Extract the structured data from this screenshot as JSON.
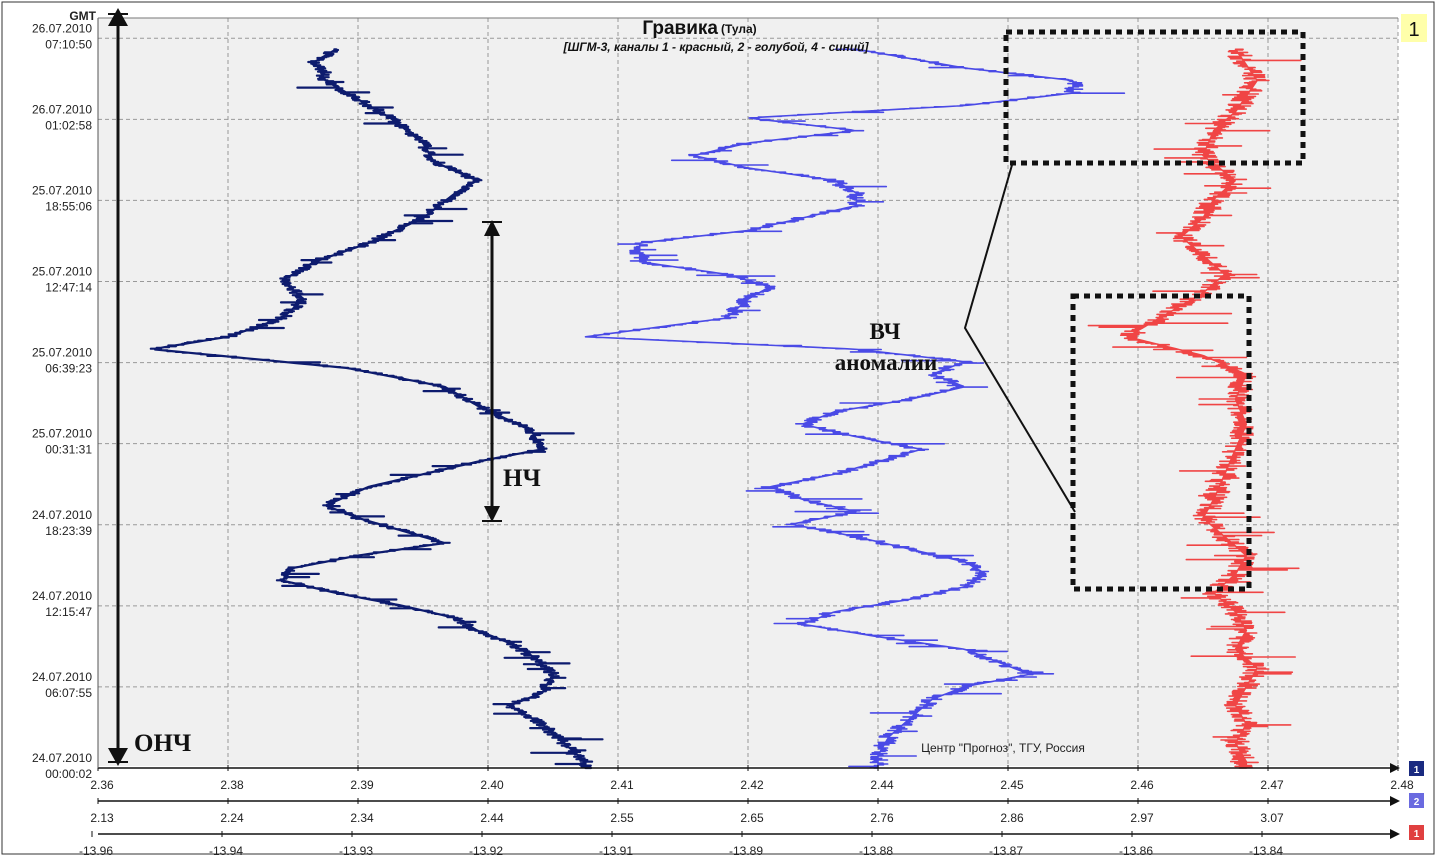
{
  "chart_data": {
    "type": "line",
    "title": "Гравика",
    "title_location": "(Тула)",
    "subtitle": "[ШГМ-3, каналы 1 - красный, 2 - голубой, 4 - синий]",
    "panel_number": "1",
    "credit": "Центр \"Прогноз\", ТГУ, Россия",
    "y_axis_label": "GMT",
    "y_ticks": [
      {
        "date": "26.07.2010",
        "time": "07:10:50"
      },
      {
        "date": "26.07.2010",
        "time": "01:02:58"
      },
      {
        "date": "25.07.2010",
        "time": "18:55:06"
      },
      {
        "date": "25.07.2010",
        "time": "12:47:14"
      },
      {
        "date": "25.07.2010",
        "time": "06:39:23"
      },
      {
        "date": "25.07.2010",
        "time": "00:31:31"
      },
      {
        "date": "24.07.2010",
        "time": "18:23:39"
      },
      {
        "date": "24.07.2010",
        "time": "12:15:47"
      },
      {
        "date": "24.07.2010",
        "time": "06:07:55"
      },
      {
        "date": "24.07.2010",
        "time": "00:00:02"
      }
    ],
    "time_range_hours": [
      0,
      60
    ],
    "x_axes": [
      {
        "channel": "4",
        "ticks": [
          "2.36",
          "2.38",
          "2.39",
          "2.40",
          "2.41",
          "2.42",
          "2.44",
          "2.45",
          "2.46",
          "2.47",
          "2.48"
        ]
      },
      {
        "channel": "2",
        "ticks": [
          "2.13",
          "2.24",
          "2.34",
          "2.44",
          "2.55",
          "2.65",
          "2.76",
          "2.86",
          "2.97",
          "3.07"
        ]
      },
      {
        "channel": "1",
        "ticks": [
          "-13.96",
          "-13.94",
          "-13.93",
          "-13.92",
          "-13.91",
          "-13.89",
          "-13.88",
          "-13.87",
          "-13.86",
          "-13.84"
        ]
      }
    ],
    "legend_badges": [
      "1",
      "2",
      "1"
    ],
    "grid": true,
    "series": [
      {
        "channel": "4",
        "color": "#0d1b6e",
        "noise": 5,
        "points": [
          [
            57.5,
            2.382
          ],
          [
            56.5,
            2.38
          ],
          [
            55,
            2.381
          ],
          [
            53.5,
            2.384
          ],
          [
            52,
            2.387
          ],
          [
            50,
            2.39
          ],
          [
            48.5,
            2.391
          ],
          [
            47,
            2.395
          ],
          [
            46,
            2.393
          ],
          [
            44,
            2.39
          ],
          [
            42,
            2.385
          ],
          [
            40.5,
            2.38
          ],
          [
            39,
            2.377
          ],
          [
            37.5,
            2.379
          ],
          [
            36,
            2.377
          ],
          [
            34.5,
            2.372
          ],
          [
            33.5,
            2.365
          ],
          [
            32,
            2.383
          ],
          [
            30.5,
            2.392
          ],
          [
            29,
            2.395
          ],
          [
            27,
            2.4
          ],
          [
            25.5,
            2.401
          ],
          [
            24.5,
            2.395
          ],
          [
            23.5,
            2.39
          ],
          [
            22.5,
            2.385
          ],
          [
            21,
            2.381
          ],
          [
            20,
            2.384
          ],
          [
            19,
            2.388
          ],
          [
            18,
            2.392
          ],
          [
            17,
            2.384
          ],
          [
            16,
            2.378
          ],
          [
            15,
            2.377
          ],
          [
            14,
            2.382
          ],
          [
            13,
            2.388
          ],
          [
            12,
            2.393
          ],
          [
            11,
            2.395
          ],
          [
            10,
            2.398
          ],
          [
            9,
            2.4
          ],
          [
            7.5,
            2.402
          ],
          [
            6,
            2.401
          ],
          [
            5,
            2.398
          ],
          [
            3.5,
            2.401
          ],
          [
            2,
            2.403
          ],
          [
            0.5,
            2.405
          ],
          [
            0,
            2.405
          ]
        ]
      },
      {
        "channel": "2",
        "color": "#4a4ae6",
        "noise": 7,
        "points": [
          [
            57.5,
            2.43
          ],
          [
            56,
            2.44
          ],
          [
            55,
            2.45
          ],
          [
            54,
            2.45
          ],
          [
            53,
            2.44
          ],
          [
            52,
            2.42
          ],
          [
            51,
            2.43
          ],
          [
            50,
            2.42
          ],
          [
            49,
            2.415
          ],
          [
            48,
            2.42
          ],
          [
            47,
            2.428
          ],
          [
            46,
            2.43
          ],
          [
            45,
            2.43
          ],
          [
            44,
            2.425
          ],
          [
            43,
            2.42
          ],
          [
            42,
            2.41
          ],
          [
            40.5,
            2.41
          ],
          [
            39.5,
            2.418
          ],
          [
            38.5,
            2.422
          ],
          [
            37.5,
            2.42
          ],
          [
            36,
            2.418
          ],
          [
            34.5,
            2.405
          ],
          [
            33.5,
            2.43
          ],
          [
            32.5,
            2.44
          ],
          [
            31.5,
            2.437
          ],
          [
            30.5,
            2.44
          ],
          [
            29.5,
            2.435
          ],
          [
            28.5,
            2.428
          ],
          [
            27.5,
            2.425
          ],
          [
            26.5,
            2.43
          ],
          [
            25.5,
            2.436
          ],
          [
            24.5,
            2.432
          ],
          [
            23.5,
            2.428
          ],
          [
            22.5,
            2.422
          ],
          [
            21.5,
            2.425
          ],
          [
            20.5,
            2.43
          ],
          [
            19.5,
            2.424
          ],
          [
            18.5,
            2.43
          ],
          [
            17.5,
            2.435
          ],
          [
            16.5,
            2.44
          ],
          [
            15.5,
            2.442
          ],
          [
            14.5,
            2.44
          ],
          [
            13.5,
            2.435
          ],
          [
            12.5,
            2.428
          ],
          [
            11.5,
            2.425
          ],
          [
            10.5,
            2.432
          ],
          [
            9.5,
            2.44
          ],
          [
            8.5,
            2.443
          ],
          [
            7.5,
            2.446
          ],
          [
            6.5,
            2.44
          ],
          [
            5.5,
            2.437
          ],
          [
            4,
            2.435
          ],
          [
            2.5,
            2.433
          ],
          [
            1,
            2.432
          ],
          [
            0,
            2.432
          ]
        ]
      },
      {
        "channel": "1",
        "color": "#f04545",
        "noise": 9,
        "points": [
          [
            57.5,
            2.465
          ],
          [
            55,
            2.467
          ],
          [
            52.5,
            2.465
          ],
          [
            51,
            2.463
          ],
          [
            49,
            2.462
          ],
          [
            47,
            2.465
          ],
          [
            45.5,
            2.463
          ],
          [
            44,
            2.462
          ],
          [
            42.5,
            2.46
          ],
          [
            41,
            2.462
          ],
          [
            39.5,
            2.464
          ],
          [
            38,
            2.462
          ],
          [
            36.5,
            2.459
          ],
          [
            35.5,
            2.457
          ],
          [
            34.5,
            2.455
          ],
          [
            33,
            2.462
          ],
          [
            31.5,
            2.466
          ],
          [
            29.5,
            2.465
          ],
          [
            27.5,
            2.466
          ],
          [
            25.5,
            2.465
          ],
          [
            23.5,
            2.464
          ],
          [
            21.5,
            2.463
          ],
          [
            20,
            2.462
          ],
          [
            18.5,
            2.464
          ],
          [
            17,
            2.466
          ],
          [
            15.5,
            2.465
          ],
          [
            14,
            2.463
          ],
          [
            12.5,
            2.465
          ],
          [
            11,
            2.466
          ],
          [
            9.5,
            2.465
          ],
          [
            8,
            2.467
          ],
          [
            6.5,
            2.466
          ],
          [
            5,
            2.465
          ],
          [
            3.5,
            2.466
          ],
          [
            2,
            2.465
          ],
          [
            0.5,
            2.466
          ],
          [
            0,
            2.466
          ]
        ]
      }
    ],
    "annotations": {
      "onch": "ОНЧ",
      "nch": "НЧ",
      "vch_line1": "ВЧ",
      "vch_line2": "аномалии"
    }
  }
}
